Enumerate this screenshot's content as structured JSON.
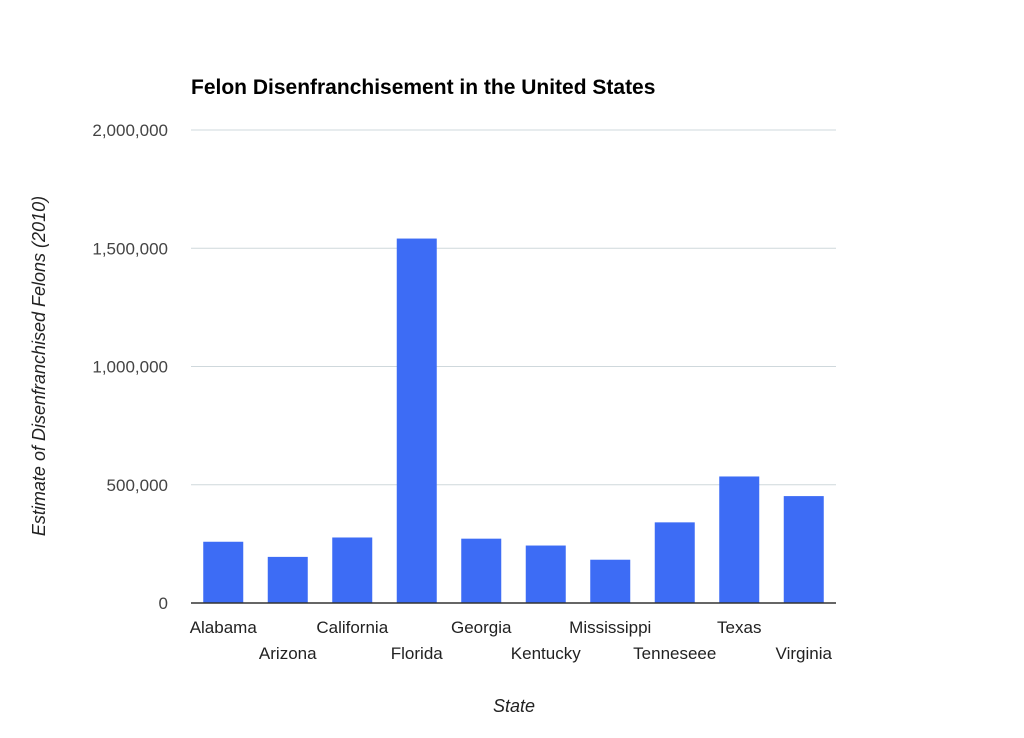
{
  "chart_data": {
    "type": "bar",
    "title": "Felon Disenfranchisement in the United States",
    "xlabel": "State",
    "ylabel": "Estimate of Disenfranchised Felons (2010)",
    "categories": [
      "Alabama",
      "Arizona",
      "California",
      "Florida",
      "Georgia",
      "Kentucky",
      "Mississippi",
      "Tenneseee",
      "Texas",
      "Virginia"
    ],
    "values": [
      259000,
      195000,
      277000,
      1541000,
      272000,
      243000,
      183000,
      341000,
      535000,
      452000
    ],
    "ylim": [
      0,
      2000000
    ],
    "yticks": [
      0,
      500000,
      1000000,
      1500000,
      2000000
    ],
    "ytick_labels": [
      "0",
      "500,000",
      "1,000,000",
      "1,500,000",
      "2,000,000"
    ],
    "grid": true,
    "legend": "none",
    "bar_color": "#3d6cf5"
  }
}
